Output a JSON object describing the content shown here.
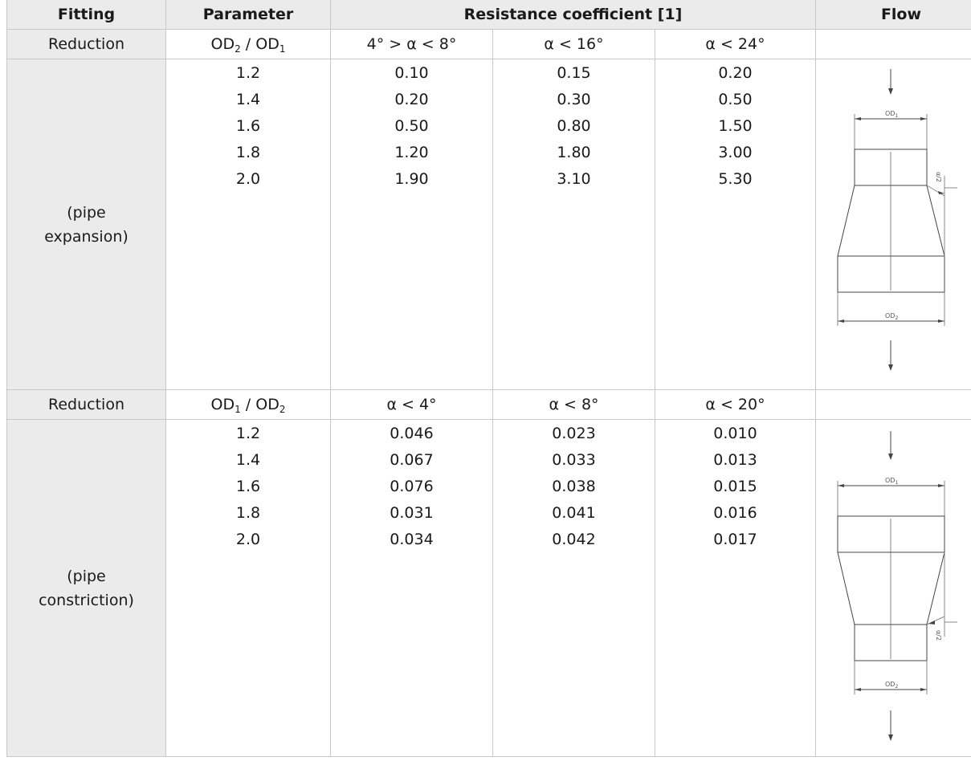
{
  "headers": {
    "fitting": "Fitting",
    "parameter": "Parameter",
    "resistance": "Resistance coefficient [1]",
    "flow": "Flow"
  },
  "sections": [
    {
      "reduction_label": "Reduction",
      "param_head": {
        "a": "OD",
        "a_sub": "2",
        "sep": " / ",
        "b": "OD",
        "b_sub": "1"
      },
      "angle_heads": [
        "4° > α < 8°",
        "α < 16°",
        "α < 24°"
      ],
      "fitting_line1": "(pipe",
      "fitting_line2": "expansion)",
      "params": [
        "1.2",
        "1.4",
        "1.6",
        "1.8",
        "2.0"
      ],
      "col1": [
        "0.10",
        "0.20",
        "0.50",
        "1.20",
        "1.90"
      ],
      "col2": [
        "0.15",
        "0.30",
        "0.80",
        "1.80",
        "3.10"
      ],
      "col3": [
        "0.20",
        "0.50",
        "1.50",
        "3.00",
        "5.30"
      ],
      "diagram": {
        "top_label": "OD",
        "top_sub": "1",
        "bottom_label": "OD",
        "bottom_sub": "2",
        "angle_label": "α/2"
      }
    },
    {
      "reduction_label": "Reduction",
      "param_head": {
        "a": "OD",
        "a_sub": "1",
        "sep": " / ",
        "b": "OD",
        "b_sub": "2"
      },
      "angle_heads": [
        "α < 4°",
        "α < 8°",
        "α < 20°"
      ],
      "fitting_line1": "(pipe",
      "fitting_line2": "constriction)",
      "params": [
        "1.2",
        "1.4",
        "1.6",
        "1.8",
        "2.0"
      ],
      "col1": [
        "0.046",
        "0.067",
        "0.076",
        "0.031",
        "0.034"
      ],
      "col2": [
        "0.023",
        "0.033",
        "0.038",
        "0.041",
        "0.042"
      ],
      "col3": [
        "0.010",
        "0.013",
        "0.015",
        "0.016",
        "0.017"
      ],
      "diagram": {
        "top_label": "OD",
        "top_sub": "1",
        "bottom_label": "OD",
        "bottom_sub": "2",
        "angle_label": "α/2"
      }
    }
  ]
}
